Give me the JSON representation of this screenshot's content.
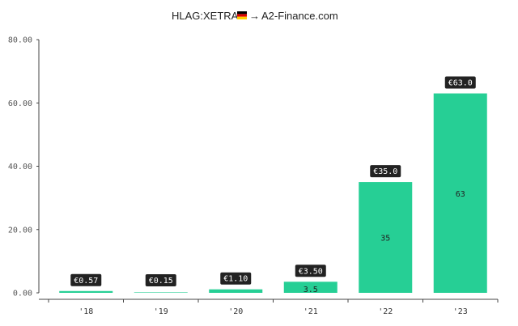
{
  "header": {
    "ticker": "HLAG:XETRA",
    "flag_icon": "germany-flag-icon",
    "arrow": "→",
    "source": "A2-Finance.com"
  },
  "colors": {
    "bar": "#26cf95",
    "label_bg": "#222222",
    "axis": "#444444"
  },
  "chart_data": {
    "type": "bar",
    "categories": [
      "'18",
      "'19",
      "'20",
      "'21",
      "'22",
      "'23"
    ],
    "values": [
      0.57,
      0.15,
      1.1,
      3.5,
      35.0,
      63.0
    ],
    "data_labels": [
      "€0.57",
      "€0.15",
      "€1.10",
      "€3.50",
      "€35.0",
      "€63.0"
    ],
    "inner_labels": [
      "",
      "",
      "",
      "3.5",
      "35",
      "63"
    ],
    "yticks": [
      0,
      20,
      40,
      60,
      80
    ],
    "ytick_labels": [
      "0.00",
      "20.00",
      "40.00",
      "60.00",
      "80.00"
    ],
    "ylim": [
      0,
      80
    ],
    "title": "",
    "xlabel": "",
    "ylabel": "",
    "grid": false,
    "legend": "none"
  }
}
